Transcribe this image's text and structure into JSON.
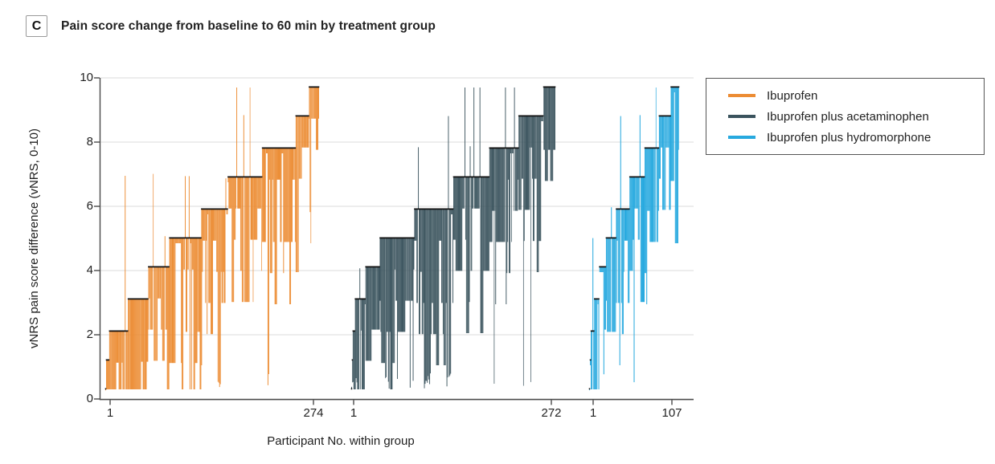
{
  "panel": {
    "label": "C",
    "title": "Pain score change from baseline to 60 min by treatment group"
  },
  "axes": {
    "y_label": "vNRS pain score difference (vNRS, 0-10)",
    "y_ticks": [
      0,
      2,
      4,
      6,
      8,
      10
    ],
    "x_label": "Participant No. within group",
    "x_tick_labels": [
      "1",
      "274",
      "1",
      "272",
      "1",
      "107"
    ]
  },
  "legend": {
    "items": [
      {
        "label": "Ibuprofen",
        "color": "#EC8C33"
      },
      {
        "label": "Ibuprofen plus acetaminophen",
        "color": "#3A535D"
      },
      {
        "label": "Ibuprofen plus hydromorphone",
        "color": "#27A9DF"
      }
    ]
  },
  "colors": {
    "grid": "#DBDBDB",
    "axis": "#4A4A4A",
    "text": "#1E1E1E"
  },
  "chart_data": {
    "type": "line",
    "variant": "sorted-per-participant-vertical-spike-plot",
    "title": "Pain score change from baseline to 60 min by treatment group",
    "xlabel": "Participant No. within group",
    "ylabel": "vNRS pain score difference (vNRS, 0-10)",
    "ylim": [
      0,
      10
    ],
    "y_ticks": [
      0,
      2,
      4,
      6,
      8,
      10
    ],
    "grid": "horizontal",
    "legend_position": "top-right-outside",
    "description": "Participants sorted ascending within each group; a dark step line marks each participant's sorted score difference at discrete vNRS levels, with a colored vertical line hanging mostly downward (occasionally upward) from it.",
    "score_levels": [
      0.3,
      1.2,
      2.1,
      3.1,
      4.1,
      5.0,
      5.9,
      6.9,
      7.8,
      8.8,
      9.7
    ],
    "step_line_color": "#111111",
    "seed": 11,
    "groups": [
      {
        "name": "Ibuprofen",
        "color": "#EC8C33",
        "n": 274,
        "x_first_label": "1",
        "x_last_label": "274",
        "level_pct": [
          0.4,
          1.5,
          8.7,
          9.5,
          10.0,
          14.8,
          12.5,
          16.0,
          15.5,
          6.4,
          4.7
        ]
      },
      {
        "name": "Ibuprofen plus acetaminophen",
        "color": "#3A535D",
        "n": 272,
        "x_first_label": "1",
        "x_last_label": "272",
        "level_pct": [
          0.4,
          0.4,
          1.2,
          5.0,
          7.0,
          17.0,
          19.0,
          17.5,
          14.5,
          12.0,
          6.0
        ]
      },
      {
        "name": "Ibuprofen plus hydromorphone",
        "color": "#27A9DF",
        "n": 107,
        "x_first_label": "1",
        "x_last_label": "107",
        "level_pct": [
          1.0,
          1.0,
          3.5,
          5.5,
          7.5,
          11.0,
          15.0,
          17.0,
          16.0,
          13.5,
          9.0
        ]
      }
    ]
  }
}
